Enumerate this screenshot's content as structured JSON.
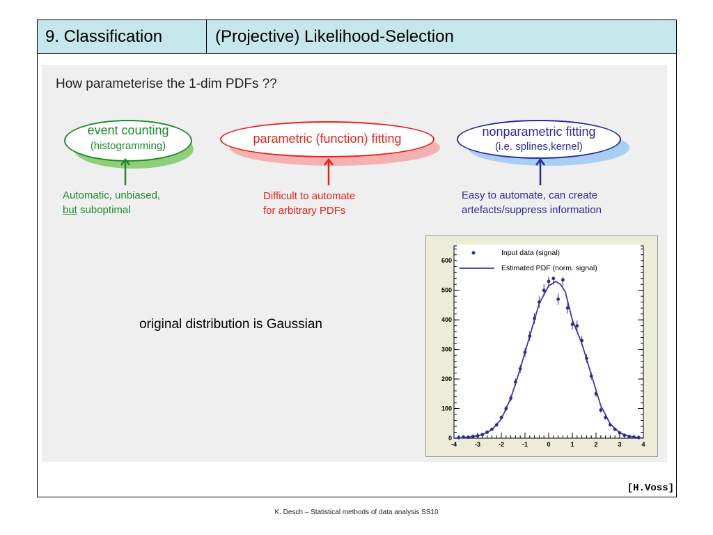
{
  "header": {
    "section": "9. Classification",
    "title": "(Projective) Likelihood-Selection"
  },
  "question": "How parameterise the 1-dim PDFs ??",
  "methods": [
    {
      "title": "event counting",
      "subtitle": "(histogramming)",
      "color": "#1e8a2a",
      "note_line1": "Automatic, unbiased,",
      "note_line2_u": "but",
      "note_line2_rest": " suboptimal"
    },
    {
      "title": "parametric (function) fitting",
      "color": "#e2231a",
      "note_line1": "Difficult to automate",
      "note_line2": "for arbitrary PDFs"
    },
    {
      "title": "nonparametric fitting",
      "subtitle": "(i.e. splines,kernel)",
      "color": "#2a2a9a",
      "note_line1": "Easy to automate, can create",
      "note_line2": "artefacts/suppress information"
    }
  ],
  "middle_text": "original distribution is Gaussian",
  "chart_data": {
    "type": "line",
    "legend": [
      "Input data (signal)",
      "Estimated PDF (norm. signal)"
    ],
    "xlim": [
      -4,
      4
    ],
    "ylim": [
      0,
      650
    ],
    "xticks": [
      "-4",
      "-3",
      "-2",
      "-1",
      "0",
      "1",
      "2",
      "3",
      "4"
    ],
    "yticks": [
      "0",
      "100",
      "200",
      "300",
      "400",
      "500",
      "600"
    ],
    "series": [
      {
        "name": "Input data (signal)",
        "x": [
          -3.8,
          -3.6,
          -3.4,
          -3.2,
          -3.0,
          -2.8,
          -2.6,
          -2.4,
          -2.2,
          -2.0,
          -1.8,
          -1.6,
          -1.4,
          -1.2,
          -1.0,
          -0.8,
          -0.6,
          -0.4,
          -0.2,
          0.0,
          0.2,
          0.4,
          0.6,
          0.8,
          1.0,
          1.2,
          1.4,
          1.6,
          1.8,
          2.0,
          2.2,
          2.4,
          2.6,
          2.8,
          3.0,
          3.2,
          3.4,
          3.6,
          3.8
        ],
        "values": [
          2,
          4,
          3,
          6,
          8,
          12,
          20,
          30,
          45,
          70,
          100,
          135,
          190,
          235,
          290,
          345,
          405,
          460,
          500,
          530,
          540,
          470,
          535,
          440,
          385,
          380,
          330,
          270,
          210,
          150,
          95,
          70,
          45,
          30,
          18,
          10,
          6,
          4,
          2
        ]
      },
      {
        "name": "Estimated PDF (norm. signal)",
        "x": [
          -4,
          -3.6,
          -3.2,
          -2.8,
          -2.4,
          -2.0,
          -1.6,
          -1.2,
          -0.8,
          -0.4,
          0.0,
          0.3,
          0.5,
          0.7,
          1.0,
          1.4,
          1.8,
          2.2,
          2.6,
          3.0,
          3.4,
          3.8,
          4
        ],
        "values": [
          0,
          2,
          5,
          12,
          28,
          65,
          135,
          235,
          345,
          455,
          515,
          530,
          520,
          495,
          400,
          320,
          215,
          110,
          48,
          18,
          6,
          2,
          0
        ]
      }
    ]
  },
  "ref": "[H.Voss]",
  "credit": "K. Desch – Statistical methods of data analysis SS10"
}
